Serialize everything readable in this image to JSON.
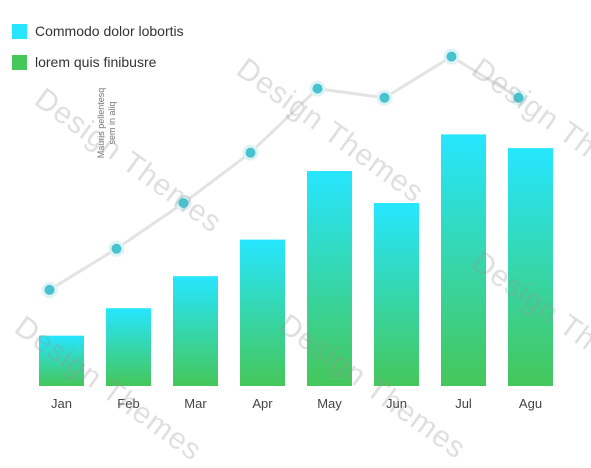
{
  "chart_data": {
    "type": "bar",
    "categories": [
      "Jan",
      "Feb",
      "Mar",
      "Apr",
      "May",
      "Jun",
      "Jul",
      "Agu"
    ],
    "series": [
      {
        "name": "Commodo dolor lobortis",
        "type": "bar",
        "color": "#26E6FF",
        "values": [
          11,
          17,
          24,
          32,
          47,
          40,
          55,
          52
        ]
      },
      {
        "name": "lorem quis finibusre",
        "type": "line",
        "color": "#45C75A",
        "values": [
          21,
          30,
          40,
          51,
          65,
          63,
          72,
          63
        ]
      }
    ],
    "ylabel": "Mauris pellentesq sem in aliq",
    "ylim": [
      0,
      80
    ],
    "grid": false,
    "legend": "top-left",
    "colors": {
      "bar_top": "#26E6FF",
      "bar_bottom": "#45C75A",
      "line": "#E3E3E3",
      "marker": "#46C3CF",
      "marker_stroke": "#DDF3F5",
      "axis_text": "#444444"
    }
  },
  "watermark": "Design Themes"
}
